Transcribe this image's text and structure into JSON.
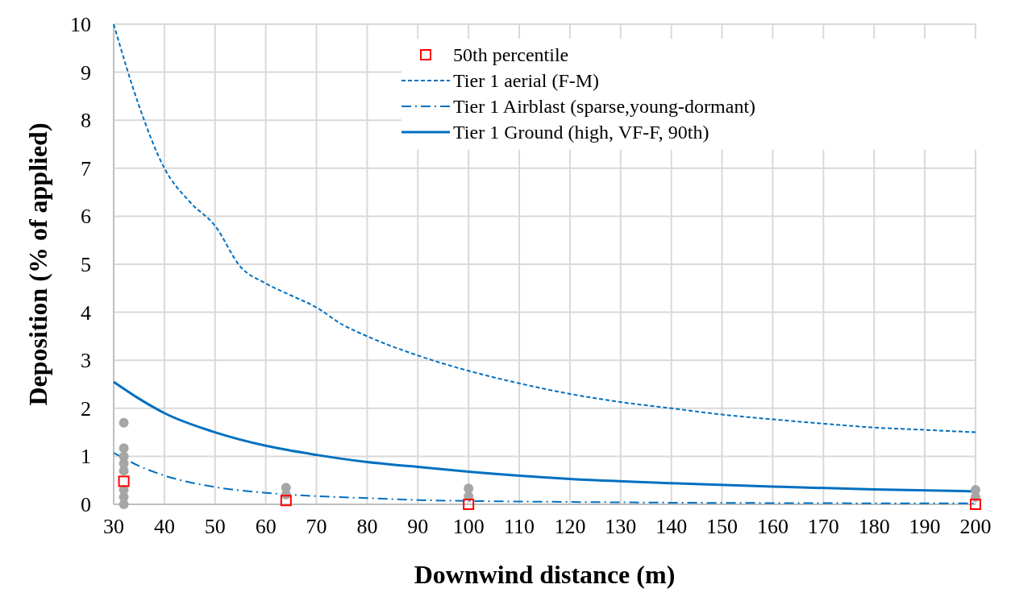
{
  "chart_data": {
    "type": "line",
    "xlabel": "Downwind distance (m)",
    "ylabel": "Deposition (% of applied)",
    "xlim": [
      30,
      200
    ],
    "xticks": [
      30,
      40,
      50,
      60,
      70,
      80,
      90,
      100,
      110,
      120,
      130,
      140,
      150,
      160,
      170,
      180,
      190,
      200
    ],
    "ylim": [
      0,
      10
    ],
    "yticks": [
      0,
      1,
      2,
      3,
      4,
      5,
      6,
      7,
      8,
      9,
      10
    ],
    "grid": true,
    "legend": "top right",
    "series": [
      {
        "type": "scatter",
        "color": "#a6a6a6",
        "marker": "circle",
        "x": [
          32,
          32,
          32,
          32,
          32,
          32,
          32,
          32,
          64,
          64,
          100,
          100,
          200,
          200
        ],
        "values": [
          0,
          0.15,
          0.3,
          0.7,
          0.85,
          1.0,
          1.17,
          1.7,
          0.2,
          0.35,
          0.17,
          0.33,
          0.15,
          0.3
        ]
      },
      {
        "type": "scatter",
        "name": "50th percentile",
        "color": "#ff0000",
        "marker": "square",
        "x": [
          32,
          64,
          100,
          200
        ],
        "values": [
          0.48,
          0.08,
          0,
          0
        ]
      },
      {
        "name": "Tier 1 aerial (F-M)",
        "color": "#0070c0",
        "line_style": "dashed",
        "x": [
          30,
          35,
          40,
          45,
          50,
          55,
          60,
          65,
          70,
          75,
          80,
          90,
          100,
          110,
          120,
          130,
          140,
          150,
          160,
          170,
          180,
          190,
          200
        ],
        "values": [
          10,
          8.3,
          7.0,
          6.3,
          5.8,
          4.95,
          4.6,
          4.35,
          4.1,
          3.75,
          3.5,
          3.1,
          2.78,
          2.52,
          2.3,
          2.13,
          2.0,
          1.87,
          1.77,
          1.68,
          1.6,
          1.55,
          1.5
        ]
      },
      {
        "name": "Tier 1 Airblast (sparse,young-dormant)",
        "color": "#0070c0",
        "line_style": "dotted",
        "x": [
          30,
          35,
          40,
          50,
          60,
          70,
          80,
          90,
          100,
          120,
          150,
          200
        ],
        "values": [
          1.07,
          0.8,
          0.6,
          0.36,
          0.24,
          0.17,
          0.13,
          0.09,
          0.07,
          0.05,
          0.03,
          0.02
        ]
      },
      {
        "name": "Tier 1 Ground (high, VF-F, 90th)",
        "color": "#0070c0",
        "line_style": "solid",
        "x": [
          30,
          35,
          40,
          50,
          60,
          70,
          80,
          90,
          100,
          120,
          140,
          160,
          180,
          200
        ],
        "values": [
          2.55,
          2.2,
          1.9,
          1.5,
          1.22,
          1.03,
          0.88,
          0.78,
          0.68,
          0.53,
          0.44,
          0.37,
          0.31,
          0.27
        ]
      }
    ]
  }
}
